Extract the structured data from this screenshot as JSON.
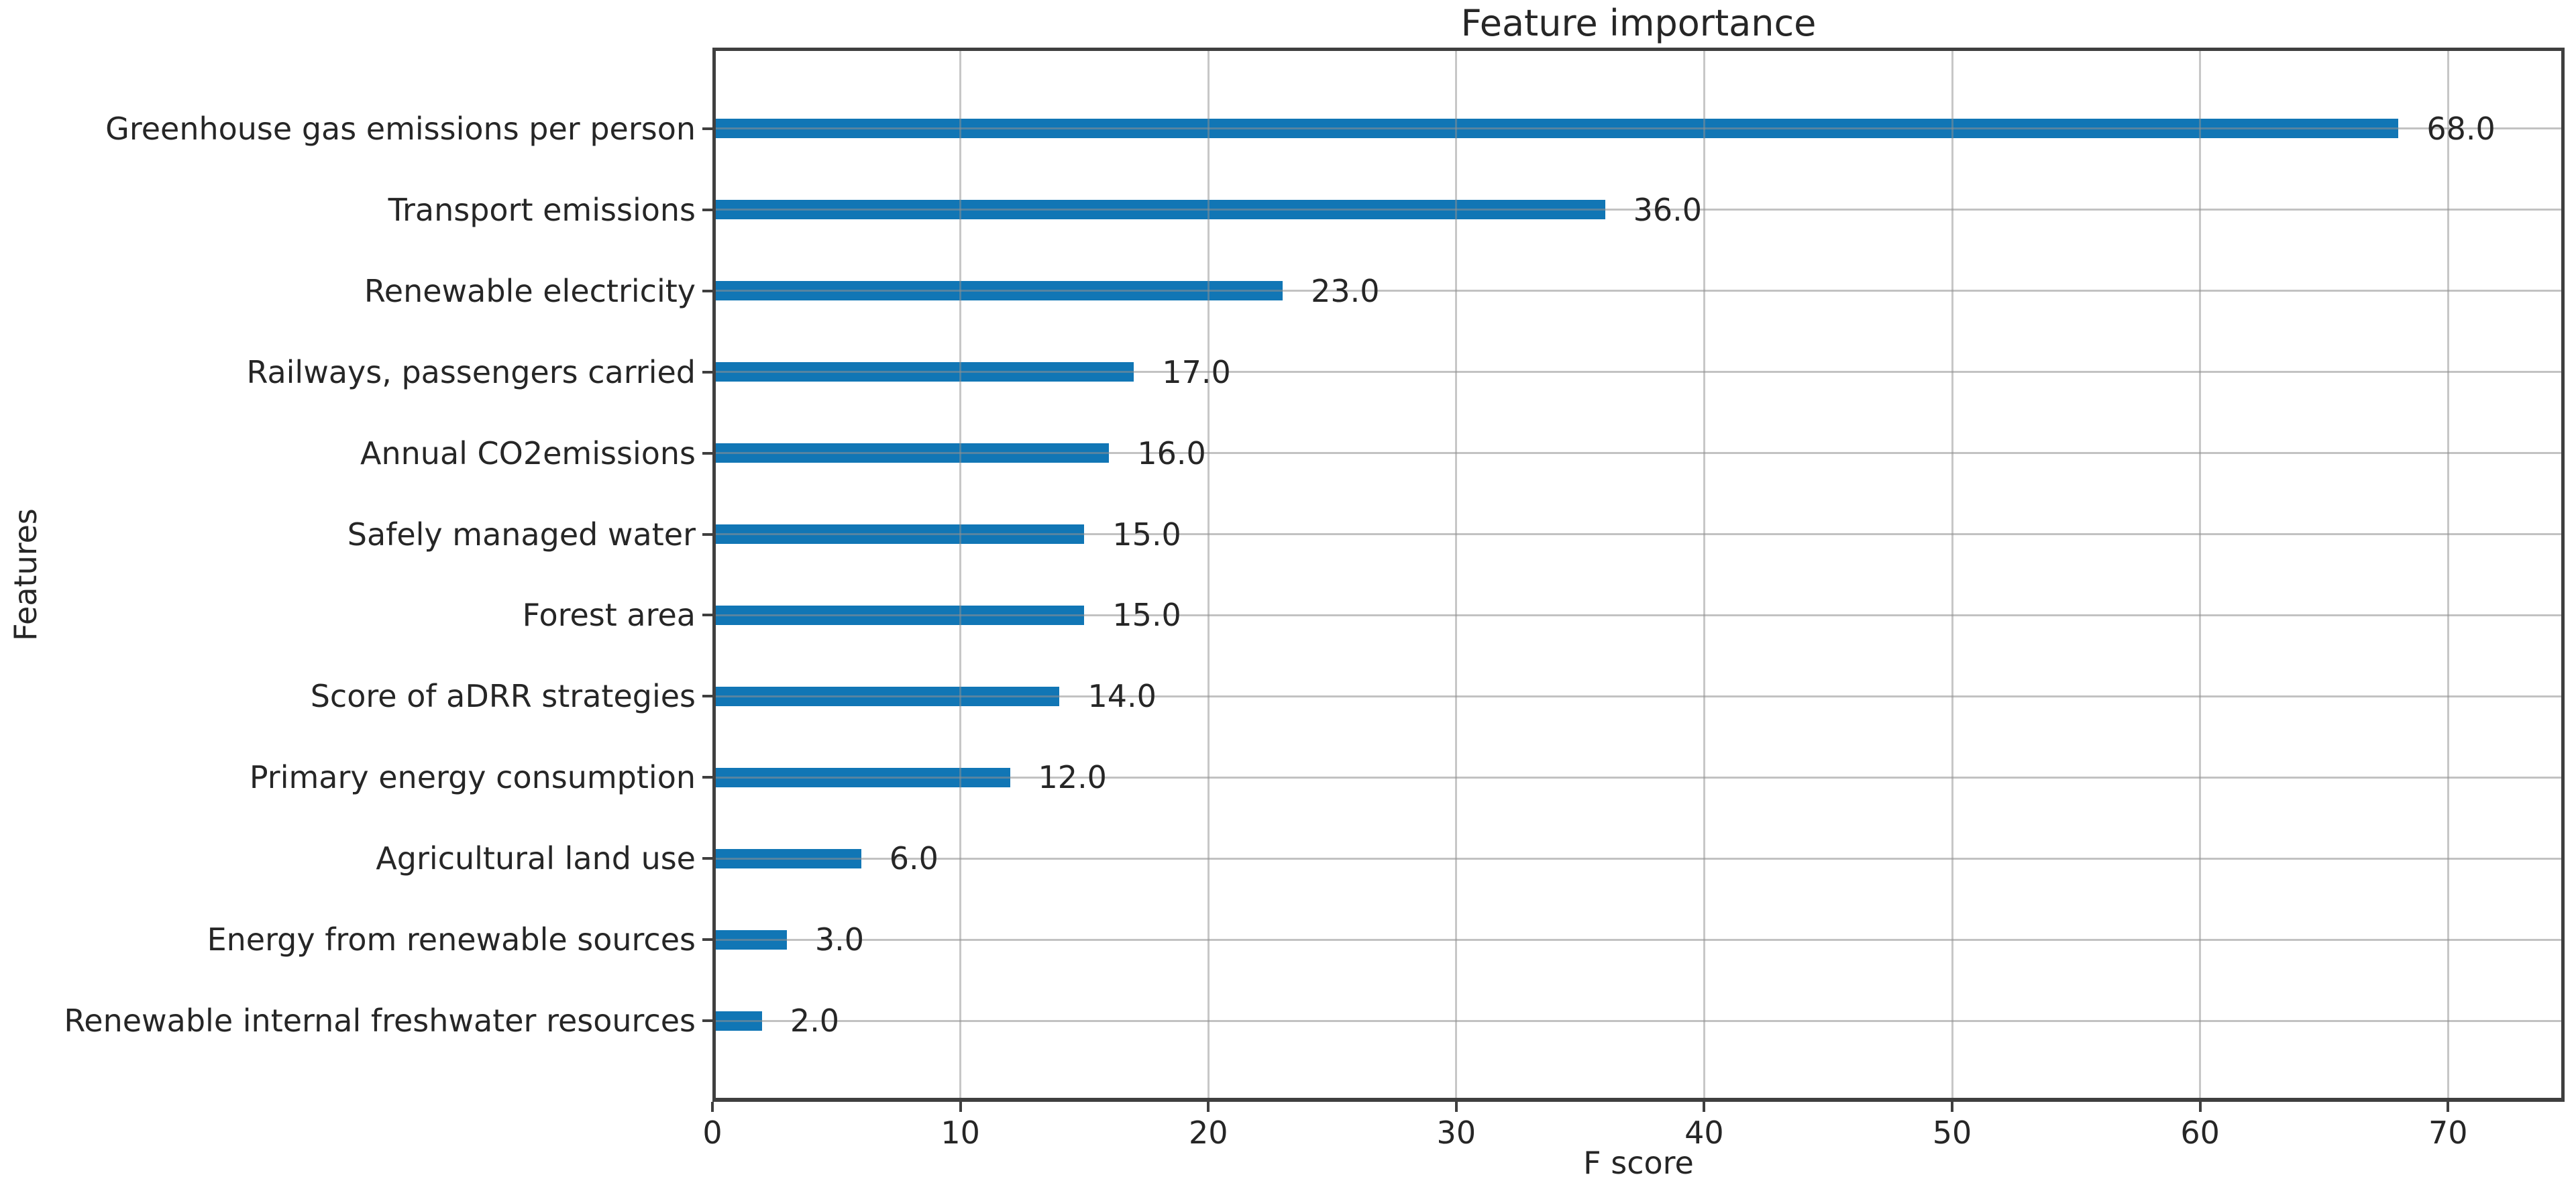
{
  "chart_data": {
    "type": "bar",
    "orientation": "horizontal",
    "title": "Feature importance",
    "xlabel": "F score",
    "ylabel": "Features",
    "categories": [
      "Greenhouse gas emissions per person",
      "Transport emissions",
      "Renewable electricity",
      "Railways, passengers carried",
      "Annual CO2emissions",
      "Safely managed water",
      "Forest area",
      "Score of aDRR strategies",
      "Primary energy consumption",
      "Agricultural land use",
      "Energy from renewable sources",
      "Renewable internal freshwater resources"
    ],
    "values": [
      68,
      36,
      23,
      17,
      16,
      15,
      15,
      14,
      12,
      6,
      3,
      2
    ],
    "value_labels": [
      "68.0",
      "36.0",
      "23.0",
      "17.0",
      "16.0",
      "15.0",
      "15.0",
      "14.0",
      "12.0",
      "6.0",
      "3.0",
      "2.0"
    ],
    "xticks": [
      0,
      10,
      20,
      30,
      40,
      50,
      60,
      70
    ],
    "xtick_labels": [
      "0",
      "10",
      "20",
      "30",
      "40",
      "50",
      "60",
      "70"
    ],
    "xlim": [
      0,
      74.7
    ],
    "grid": true,
    "legend": null,
    "bar_color": "#1176b5",
    "colors": {
      "text": "#262626",
      "spine": "#3f3f3f",
      "grid": "#b9b9b9",
      "background": "#ffffff"
    }
  }
}
